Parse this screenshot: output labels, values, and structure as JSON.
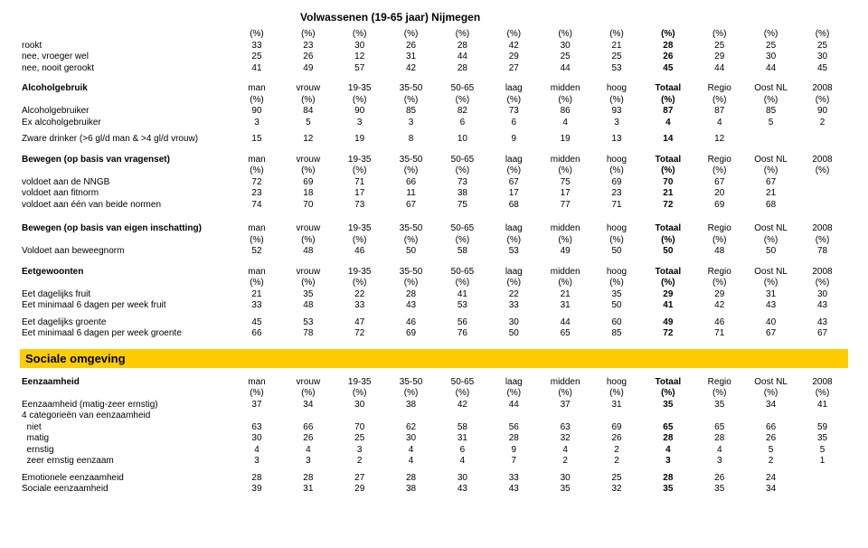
{
  "title": "Volwassenen (19-65 jaar) Nijmegen",
  "pct_row": [
    "(%)",
    "(%)",
    "(%)",
    "(%)",
    "(%)",
    "(%)",
    "(%)",
    "(%)",
    "(%)",
    "(%)",
    "(%)",
    "(%)"
  ],
  "pct_bold_idx": 8,
  "top": {
    "rows": [
      {
        "label": "rookt",
        "v": [
          "33",
          "23",
          "30",
          "26",
          "28",
          "42",
          "30",
          "21",
          "28",
          "25",
          "25",
          "25"
        ]
      },
      {
        "label": "nee, vroeger wel",
        "v": [
          "25",
          "26",
          "12",
          "31",
          "44",
          "29",
          "25",
          "25",
          "26",
          "29",
          "30",
          "30"
        ]
      },
      {
        "label": "nee, nooit gerookt",
        "v": [
          "41",
          "49",
          "57",
          "42",
          "28",
          "27",
          "44",
          "53",
          "45",
          "44",
          "44",
          "45"
        ]
      }
    ]
  },
  "alcohol": {
    "header_label": "Alcoholgebruik",
    "cols": [
      "man",
      "vrouw",
      "19-35",
      "35-50",
      "50-65",
      "laag",
      "midden",
      "hoog",
      "Totaal",
      "Regio",
      "Oost NL",
      "2008"
    ],
    "rows": [
      {
        "label": "Alcoholgebruiker",
        "v": [
          "90",
          "84",
          "90",
          "85",
          "82",
          "73",
          "86",
          "93",
          "87",
          "87",
          "85",
          "90"
        ]
      },
      {
        "label": "Ex alcoholgebruiker",
        "v": [
          "3",
          "5",
          "3",
          "3",
          "6",
          "6",
          "4",
          "3",
          "4",
          "4",
          "5",
          "2"
        ]
      }
    ]
  },
  "zware": {
    "label": "Zware drinker (>6 gl/d man & >4 gl/d vrouw)",
    "v": [
      "15",
      "12",
      "19",
      "8",
      "10",
      "9",
      "19",
      "13",
      "14",
      "12",
      "",
      ""
    ]
  },
  "bewegen_vragen": {
    "header_label": "Bewegen (op basis van vragenset)",
    "cols": [
      "man",
      "vrouw",
      "19-35",
      "35-50",
      "50-65",
      "laag",
      "midden",
      "hoog",
      "Totaal",
      "Regio",
      "Oost NL",
      "2008"
    ],
    "rows": [
      {
        "label": "voldoet aan de NNGB",
        "v": [
          "72",
          "69",
          "71",
          "66",
          "73",
          "67",
          "75",
          "69",
          "70",
          "67",
          "67",
          ""
        ]
      },
      {
        "label": "voldoet aan fitnorm",
        "v": [
          "23",
          "18",
          "17",
          "11",
          "38",
          "17",
          "17",
          "23",
          "21",
          "20",
          "21",
          ""
        ]
      },
      {
        "label": "voldoet aan één van beide normen",
        "v": [
          "74",
          "70",
          "73",
          "67",
          "75",
          "68",
          "77",
          "71",
          "72",
          "69",
          "68",
          ""
        ]
      }
    ]
  },
  "bewegen_eigen": {
    "header_label": "Bewegen (op basis van eigen inschatting)",
    "cols": [
      "man",
      "vrouw",
      "19-35",
      "35-50",
      "50-65",
      "laag",
      "midden",
      "hoog",
      "Totaal",
      "Regio",
      "Oost NL",
      "2008"
    ],
    "rows": [
      {
        "label": "Voldoet aan beweegnorm",
        "v": [
          "52",
          "48",
          "46",
          "50",
          "58",
          "53",
          "49",
          "50",
          "50",
          "48",
          "50",
          "78"
        ]
      }
    ]
  },
  "eet": {
    "header_label": "Eetgewoonten",
    "cols": [
      "man",
      "vrouw",
      "19-35",
      "35-50",
      "50-65",
      "laag",
      "midden",
      "hoog",
      "Totaal",
      "Regio",
      "Oost NL",
      "2008"
    ],
    "rows": [
      {
        "label": "Eet dagelijks fruit",
        "v": [
          "21",
          "35",
          "22",
          "28",
          "41",
          "22",
          "21",
          "35",
          "29",
          "29",
          "31",
          "30"
        ]
      },
      {
        "label": "Eet minimaal 6 dagen per week fruit",
        "v": [
          "33",
          "48",
          "33",
          "43",
          "53",
          "33",
          "31",
          "50",
          "41",
          "42",
          "43",
          "43"
        ]
      }
    ],
    "rows2": [
      {
        "label": "Eet dagelijks groente",
        "v": [
          "45",
          "53",
          "47",
          "46",
          "56",
          "30",
          "44",
          "60",
          "49",
          "46",
          "40",
          "43"
        ]
      },
      {
        "label": "Eet minimaal 6 dagen per week groente",
        "v": [
          "66",
          "78",
          "72",
          "69",
          "76",
          "50",
          "65",
          "85",
          "72",
          "71",
          "67",
          "67"
        ]
      }
    ]
  },
  "sociale_bar": "Sociale omgeving",
  "eenzaam": {
    "header_label": "Eenzaamheid",
    "cols": [
      "man",
      "vrouw",
      "19-35",
      "35-50",
      "50-65",
      "laag",
      "midden",
      "hoog",
      "Totaal",
      "Regio",
      "Oost NL",
      "2008"
    ],
    "rows": [
      {
        "label": "Eenzaamheid (matig-zeer ernstig)",
        "v": [
          "37",
          "34",
          "30",
          "38",
          "42",
          "44",
          "37",
          "31",
          "35",
          "35",
          "34",
          "41"
        ]
      },
      {
        "label": "4 categorieën van eenzaamheid",
        "v": [
          "",
          "",
          "",
          "",
          "",
          "",
          "",
          "",
          "",
          "",
          "",
          ""
        ]
      },
      {
        "label": "  niet",
        "v": [
          "63",
          "66",
          "70",
          "62",
          "58",
          "56",
          "63",
          "69",
          "65",
          "65",
          "66",
          "59"
        ]
      },
      {
        "label": "  matig",
        "v": [
          "30",
          "26",
          "25",
          "30",
          "31",
          "28",
          "32",
          "26",
          "28",
          "28",
          "26",
          "35"
        ]
      },
      {
        "label": "  ernstig",
        "v": [
          "4",
          "4",
          "3",
          "4",
          "6",
          "9",
          "4",
          "2",
          "4",
          "4",
          "5",
          "5"
        ]
      },
      {
        "label": "  zeer ernstig eenzaam",
        "v": [
          "3",
          "3",
          "2",
          "4",
          "4",
          "7",
          "2",
          "2",
          "3",
          "3",
          "2",
          "1"
        ]
      }
    ],
    "rows2": [
      {
        "label": "Emotionele eenzaamheid",
        "v": [
          "28",
          "28",
          "27",
          "28",
          "30",
          "33",
          "30",
          "25",
          "28",
          "26",
          "24",
          ""
        ]
      },
      {
        "label": "Sociale eenzaamheid",
        "v": [
          "39",
          "31",
          "29",
          "38",
          "43",
          "43",
          "35",
          "32",
          "35",
          "35",
          "34",
          ""
        ]
      }
    ]
  }
}
